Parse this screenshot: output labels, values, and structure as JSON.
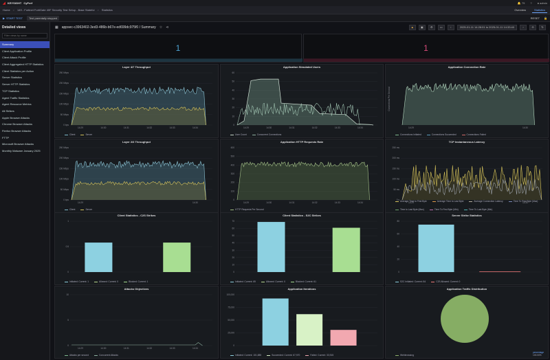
{
  "topbar": {
    "brand": "KEYSIGHT",
    "product": "CyPerf",
    "user": "admin",
    "notif": "79"
  },
  "crumbs": [
    "Home",
    "149 - Fortinet FortiGate 40F Security Test Setup - Base Stateful",
    "Statistics"
  ],
  "tabs": [
    "Overview",
    "Statistics"
  ],
  "actionbar": {
    "start": "START TEST",
    "status": "Test parentally stopped",
    "reset": "RESET"
  },
  "sidebar": {
    "title": "Detailed views",
    "filter_placeholder": "Filter views by name",
    "items": [
      "Summary",
      "Client Application Profile",
      "Client Attack Profile",
      "Client Aggregated HTTP Statistics",
      "Client Statistics per Action",
      "Server Statistics",
      "Server HTTP Statistics",
      "TCP Statistics",
      "Agent Traffic Statistics",
      "Agent Resource Metrics",
      "All Strikes",
      "Apple Browser Attacks",
      "Chrome Browser Attacks",
      "Firefox Browser Attacks",
      "FTTP",
      "Microsoft Browser Attacks",
      "Monthly Malware January 2025"
    ]
  },
  "dashboard": {
    "title": "appsec-c3963402-3ed3-486b-b67e-ed699dc975f0 / Summary",
    "range": "2025-01-11 14:28:01 to 2025-01-11 14:33:40",
    "stats": [
      {
        "value": "1",
        "color": "#4ea6d6"
      },
      {
        "value": "1",
        "color": "#d94b7a"
      }
    ]
  },
  "panels": {
    "l47": {
      "title": "Layer 4/7 Throughput",
      "legend": [
        "Client",
        "Server"
      ],
      "yticks": [
        "250 Mbps",
        "200 Mbps",
        "150 Mbps",
        "100 Mbps",
        "50 Mbps",
        "0 bps"
      ],
      "xticks": [
        "14:29",
        "14:30",
        "14:31",
        "14:32",
        "14:33",
        "14:34"
      ]
    },
    "sim": {
      "title": "Application Simulated Users",
      "legend": [
        "User Count",
        "Concurrent Connections"
      ],
      "yticks": [
        "60",
        "50",
        "40",
        "30",
        "20",
        "10",
        "0"
      ],
      "xticks": [
        "14:29",
        "14:30",
        "14:31",
        "14:32",
        "14:33",
        "14:34"
      ]
    },
    "conn": {
      "title": "Application Connection Rate",
      "legend": [
        "Connections Initiated",
        "Connections Succeeded",
        "Connections Failed"
      ],
      "ylabel": "Connections Per Second",
      "xticks": [
        "14:29",
        "14:30"
      ]
    },
    "l23": {
      "title": "Layer 2/3 Throughput",
      "legend": [
        "Client",
        "Server"
      ],
      "yticks": [
        "250 Mbps",
        "200 Mbps",
        "150 Mbps",
        "100 Mbps",
        "50 Mbps",
        "0 bps"
      ],
      "xticks": [
        "14:29",
        "14:30"
      ]
    },
    "http": {
      "title": "Application HTTP Requests Rate",
      "legend": [
        "HTTP Requests Per Second"
      ],
      "yticks": [
        "600",
        "500",
        "400",
        "300",
        "200",
        "100",
        "0"
      ],
      "xticks": [
        "14:29",
        "14:30",
        "14:31",
        "14:32",
        "14:33",
        "14:34"
      ]
    },
    "tcp": {
      "title": "TCP Instantaneous Latency",
      "legend": [
        "Average Time to First Byte",
        "Average Time to Last Byte",
        "Average Connection Latency",
        "Time To First Byte (Max)",
        "Time to Last Byte (Max)",
        "Time To First Byte (Min)",
        "Time To Last Byte (Min)"
      ],
      "yticks": [
        "250 ms",
        "200 ms",
        "150 ms",
        "100 ms",
        "50 ms",
        "0 s"
      ],
      "xticks": [
        "14:29",
        "14:30"
      ]
    },
    "c2s": {
      "title": "Client Statistics - C2S Strikes",
      "legend": [
        "Initiated: Current: 1",
        "Allowed: Current: 0",
        "Blocked: Current: 1"
      ],
      "yticks": [
        "1",
        "0.5",
        "0"
      ]
    },
    "s2c": {
      "title": "Client Statistics - S2C Strikes",
      "legend": [
        "Initiated: Current: 69",
        "Allowed: Current: 0",
        "Blocked: Current: 61"
      ],
      "yticks": [
        "70",
        "60",
        "50",
        "40",
        "30",
        "20",
        "10",
        "0"
      ]
    },
    "srv": {
      "title": "Server Strike Statistics",
      "legend": [
        "S2C Initiated: Current: 84",
        "C2S Allowed: Current: 0"
      ],
      "yticks": [
        "80",
        "60",
        "40",
        "20",
        "0"
      ]
    },
    "atk": {
      "title": "Attacks Objectives",
      "legend": [
        "Attacks per second",
        "Concurrent Attacks"
      ],
      "yticks": [
        "10",
        "5",
        "0"
      ],
      "xticks": [
        "14:29",
        "14:30",
        "14:31",
        "14:32",
        "14:33",
        "14:34"
      ]
    },
    "itr": {
      "title": "Application Iterations",
      "legend": [
        "Initiated: Current: 101,885",
        "Succeeded: Current: 67,970",
        "Failed: Current: 33,915"
      ],
      "yticks": [
        "100,000",
        "75,000",
        "50,000",
        "25,000",
        "0"
      ]
    },
    "dist": {
      "title": "Application Traffic Distribution",
      "legend": [
        "Webbrowsing"
      ],
      "footnote": "percentage",
      "footval": "100.00%"
    }
  },
  "chart_data": [
    {
      "type": "bar",
      "title": "Client Statistics - C2S Strikes",
      "categories": [
        "Initiated",
        "Allowed",
        "Blocked"
      ],
      "values": [
        1,
        0,
        1
      ],
      "ylim": [
        0,
        1
      ]
    },
    {
      "type": "bar",
      "title": "Client Statistics - S2C Strikes",
      "categories": [
        "Initiated",
        "Allowed",
        "Blocked"
      ],
      "values": [
        69,
        0,
        61
      ],
      "ylim": [
        0,
        70
      ]
    },
    {
      "type": "bar",
      "title": "Server Strike Statistics",
      "categories": [
        "S2C Initiated",
        "C2S Allowed"
      ],
      "values": [
        84,
        0
      ],
      "ylim": [
        0,
        90
      ]
    },
    {
      "type": "bar",
      "title": "Application Iterations",
      "categories": [
        "Initiated",
        "Succeeded",
        "Failed"
      ],
      "values": [
        101885,
        67970,
        33915
      ],
      "ylim": [
        0,
        110000
      ]
    },
    {
      "type": "pie",
      "title": "Application Traffic Distribution",
      "categories": [
        "Webbrowsing"
      ],
      "values": [
        100
      ]
    }
  ]
}
